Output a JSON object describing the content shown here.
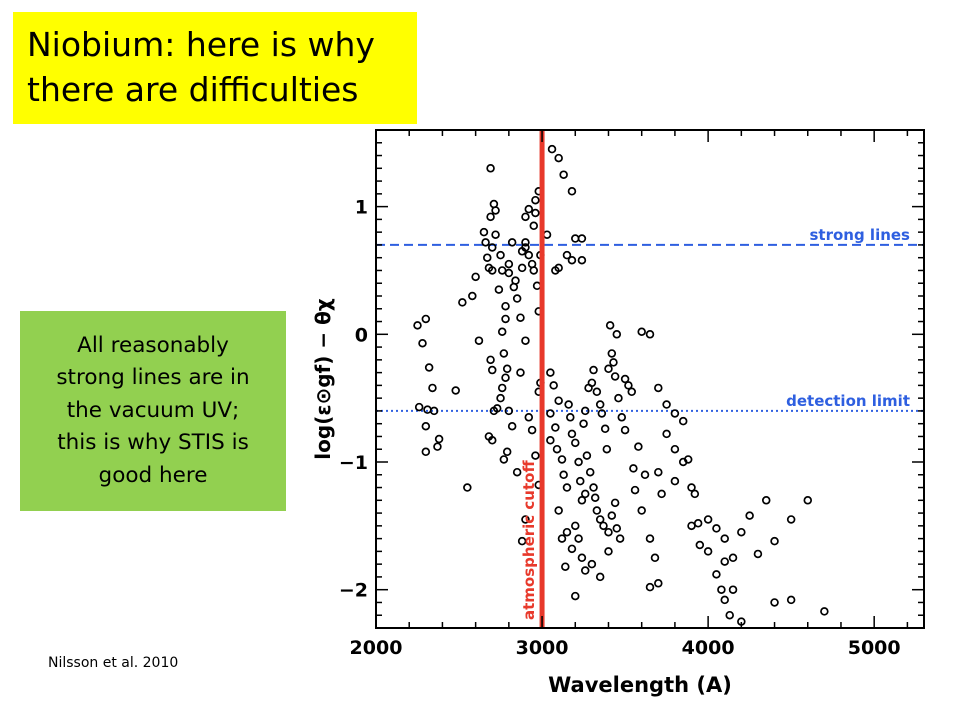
{
  "title": {
    "lines": [
      "Niobium: here is why",
      "there are difficulties"
    ]
  },
  "note": {
    "lines": [
      "All reasonably",
      "strong lines are in",
      "the vacuum UV;",
      "this is why STIS is",
      "good here"
    ]
  },
  "citation": "Nilsson et al. 2010",
  "colors": {
    "title_bg": "#ffff00",
    "note_bg": "#92d050",
    "cutoff": "#e8392b",
    "reference": "#2e5fe0",
    "points": "#000000"
  },
  "chart_data": {
    "type": "scatter",
    "xlabel": "Wavelength (A)",
    "ylabel": "log(ε⊙gf) − θχ",
    "xlim": [
      2000,
      5300
    ],
    "ylim": [
      -2.3,
      1.6
    ],
    "xticks": [
      2000,
      3000,
      4000,
      5000
    ],
    "yticks": [
      1,
      0,
      -1,
      -2
    ],
    "xtick_labels": [
      "2000",
      "3000",
      "4000",
      "5000"
    ],
    "ytick_labels": [
      "1",
      "0",
      "−1",
      "−2"
    ],
    "grid": false,
    "reference_lines": [
      {
        "label": "strong lines",
        "y": 0.7,
        "style": "dashed"
      },
      {
        "label": "detection limit",
        "y": -0.6,
        "style": "dotted"
      }
    ],
    "vertical_line": {
      "label": "atmospheric cutoff",
      "x": 3000
    },
    "points": [
      [
        2250,
        0.07
      ],
      [
        2300,
        0.12
      ],
      [
        2280,
        -0.07
      ],
      [
        2260,
        -0.57
      ],
      [
        2310,
        -0.59
      ],
      [
        2320,
        -0.26
      ],
      [
        2340,
        -0.42
      ],
      [
        2350,
        -0.6
      ],
      [
        2300,
        -0.72
      ],
      [
        2380,
        -0.82
      ],
      [
        2300,
        -0.92
      ],
      [
        2370,
        -0.88
      ],
      [
        2480,
        -0.44
      ],
      [
        2550,
        -1.2
      ],
      [
        2520,
        0.25
      ],
      [
        2580,
        0.3
      ],
      [
        2600,
        0.45
      ],
      [
        2620,
        -0.05
      ],
      [
        2650,
        0.8
      ],
      [
        2660,
        0.72
      ],
      [
        2670,
        0.6
      ],
      [
        2680,
        0.52
      ],
      [
        2700,
        0.5
      ],
      [
        2690,
        1.3
      ],
      [
        2720,
        0.97
      ],
      [
        2720,
        0.78
      ],
      [
        2700,
        0.68
      ],
      [
        2710,
        1.02
      ],
      [
        2690,
        0.92
      ],
      [
        2750,
        0.62
      ],
      [
        2760,
        0.5
      ],
      [
        2740,
        0.35
      ],
      [
        2780,
        0.22
      ],
      [
        2780,
        0.12
      ],
      [
        2760,
        0.02
      ],
      [
        2800,
        0.48
      ],
      [
        2800,
        0.55
      ],
      [
        2830,
        0.37
      ],
      [
        2820,
        0.72
      ],
      [
        2840,
        0.42
      ],
      [
        2850,
        0.28
      ],
      [
        2880,
        0.65
      ],
      [
        2880,
        0.52
      ],
      [
        2870,
        0.13
      ],
      [
        2900,
        0.72
      ],
      [
        2900,
        0.68
      ],
      [
        2920,
        0.62
      ],
      [
        2940,
        0.55
      ],
      [
        2950,
        0.85
      ],
      [
        2920,
        0.98
      ],
      [
        2900,
        0.92
      ],
      [
        2960,
        1.05
      ],
      [
        2980,
        1.12
      ],
      [
        2960,
        0.95
      ],
      [
        2980,
        0.18
      ],
      [
        2970,
        0.38
      ],
      [
        2950,
        0.5
      ],
      [
        2990,
        0.62
      ],
      [
        2690,
        -0.2
      ],
      [
        2700,
        -0.28
      ],
      [
        2710,
        -0.6
      ],
      [
        2730,
        -0.58
      ],
      [
        2750,
        -0.5
      ],
      [
        2760,
        -0.42
      ],
      [
        2780,
        -0.34
      ],
      [
        2790,
        -0.27
      ],
      [
        2770,
        -0.15
      ],
      [
        2800,
        -0.6
      ],
      [
        2820,
        -0.72
      ],
      [
        2680,
        -0.8
      ],
      [
        2700,
        -0.83
      ],
      [
        2770,
        -0.98
      ],
      [
        2790,
        -0.92
      ],
      [
        2850,
        -1.08
      ],
      [
        2880,
        -1.62
      ],
      [
        2900,
        -1.45
      ],
      [
        2870,
        -0.3
      ],
      [
        2900,
        -0.05
      ],
      [
        2920,
        -0.65
      ],
      [
        2940,
        -0.75
      ],
      [
        2960,
        -0.95
      ],
      [
        2980,
        -1.18
      ],
      [
        2990,
        -0.38
      ],
      [
        2980,
        -0.45
      ],
      [
        3060,
        1.45
      ],
      [
        3100,
        1.38
      ],
      [
        3130,
        1.25
      ],
      [
        3180,
        1.12
      ],
      [
        3200,
        0.75
      ],
      [
        3150,
        0.62
      ],
      [
        3180,
        0.58
      ],
      [
        3100,
        0.52
      ],
      [
        3240,
        0.58
      ],
      [
        3240,
        0.75
      ],
      [
        3080,
        0.5
      ],
      [
        3030,
        0.78
      ],
      [
        3050,
        -0.3
      ],
      [
        3050,
        -0.62
      ],
      [
        3070,
        -0.4
      ],
      [
        3050,
        -0.83
      ],
      [
        3080,
        -0.73
      ],
      [
        3090,
        -0.9
      ],
      [
        3100,
        -0.52
      ],
      [
        3120,
        -0.98
      ],
      [
        3130,
        -1.1
      ],
      [
        3150,
        -1.2
      ],
      [
        3160,
        -0.55
      ],
      [
        3170,
        -0.65
      ],
      [
        3180,
        -0.78
      ],
      [
        3200,
        -0.85
      ],
      [
        3220,
        -1.0
      ],
      [
        3230,
        -1.15
      ],
      [
        3240,
        -1.3
      ],
      [
        3260,
        -1.25
      ],
      [
        3300,
        -0.38
      ],
      [
        3310,
        -0.28
      ],
      [
        3330,
        -0.45
      ],
      [
        3350,
        -0.55
      ],
      [
        3360,
        -0.62
      ],
      [
        3380,
        -0.74
      ],
      [
        3390,
        -0.9
      ],
      [
        3400,
        -0.27
      ],
      [
        3410,
        0.07
      ],
      [
        3420,
        -0.15
      ],
      [
        3430,
        -0.22
      ],
      [
        3440,
        -0.33
      ],
      [
        3460,
        -0.5
      ],
      [
        3480,
        -0.65
      ],
      [
        3500,
        -0.75
      ],
      [
        3520,
        -0.4
      ],
      [
        3540,
        -0.45
      ],
      [
        3450,
        0.0
      ],
      [
        3500,
        -0.35
      ],
      [
        3280,
        -0.42
      ],
      [
        3260,
        -0.6
      ],
      [
        3250,
        -0.7
      ],
      [
        3270,
        -0.95
      ],
      [
        3290,
        -1.08
      ],
      [
        3310,
        -1.2
      ],
      [
        3320,
        -1.28
      ],
      [
        3330,
        -1.38
      ],
      [
        3350,
        -1.45
      ],
      [
        3370,
        -1.5
      ],
      [
        3400,
        -1.55
      ],
      [
        3420,
        -1.42
      ],
      [
        3440,
        -1.32
      ],
      [
        3450,
        -1.52
      ],
      [
        3470,
        -1.6
      ],
      [
        3200,
        -1.5
      ],
      [
        3220,
        -1.6
      ],
      [
        3240,
        -1.75
      ],
      [
        3260,
        -1.85
      ],
      [
        3300,
        -1.8
      ],
      [
        3350,
        -1.9
      ],
      [
        3400,
        -1.7
      ],
      [
        3150,
        -1.55
      ],
      [
        3180,
        -1.68
      ],
      [
        3200,
        -2.05
      ],
      [
        3100,
        -1.38
      ],
      [
        3120,
        -1.6
      ],
      [
        3140,
        -1.82
      ],
      [
        3600,
        0.02
      ],
      [
        3650,
        0.0
      ],
      [
        3700,
        -0.42
      ],
      [
        3750,
        -0.55
      ],
      [
        3800,
        -0.62
      ],
      [
        3850,
        -0.68
      ],
      [
        3800,
        -0.9
      ],
      [
        3750,
        -0.78
      ],
      [
        3700,
        -1.08
      ],
      [
        3720,
        -1.25
      ],
      [
        3800,
        -1.15
      ],
      [
        3850,
        -1.0
      ],
      [
        3880,
        -0.98
      ],
      [
        3900,
        -1.2
      ],
      [
        3920,
        -1.25
      ],
      [
        3940,
        -1.48
      ],
      [
        4000,
        -1.45
      ],
      [
        4050,
        -1.52
      ],
      [
        4100,
        -1.6
      ],
      [
        4100,
        -1.78
      ],
      [
        4150,
        -1.75
      ],
      [
        4200,
        -1.55
      ],
      [
        4250,
        -1.42
      ],
      [
        4300,
        -1.72
      ],
      [
        4350,
        -1.3
      ],
      [
        4400,
        -1.62
      ],
      [
        4500,
        -1.45
      ],
      [
        4600,
        -1.3
      ],
      [
        3600,
        -1.38
      ],
      [
        3650,
        -1.6
      ],
      [
        3680,
        -1.75
      ],
      [
        3700,
        -1.95
      ],
      [
        3650,
        -1.98
      ],
      [
        3900,
        -1.5
      ],
      [
        3950,
        -1.65
      ],
      [
        4000,
        -1.7
      ],
      [
        4050,
        -1.88
      ],
      [
        4080,
        -2.0
      ],
      [
        4100,
        -2.08
      ],
      [
        4150,
        -2.0
      ],
      [
        4130,
        -2.2
      ],
      [
        4200,
        -2.25
      ],
      [
        4400,
        -2.1
      ],
      [
        4500,
        -2.08
      ],
      [
        4700,
        -2.17
      ],
      [
        3550,
        -1.05
      ],
      [
        3560,
        -1.22
      ],
      [
        3580,
        -0.88
      ],
      [
        3620,
        -1.1
      ]
    ]
  }
}
